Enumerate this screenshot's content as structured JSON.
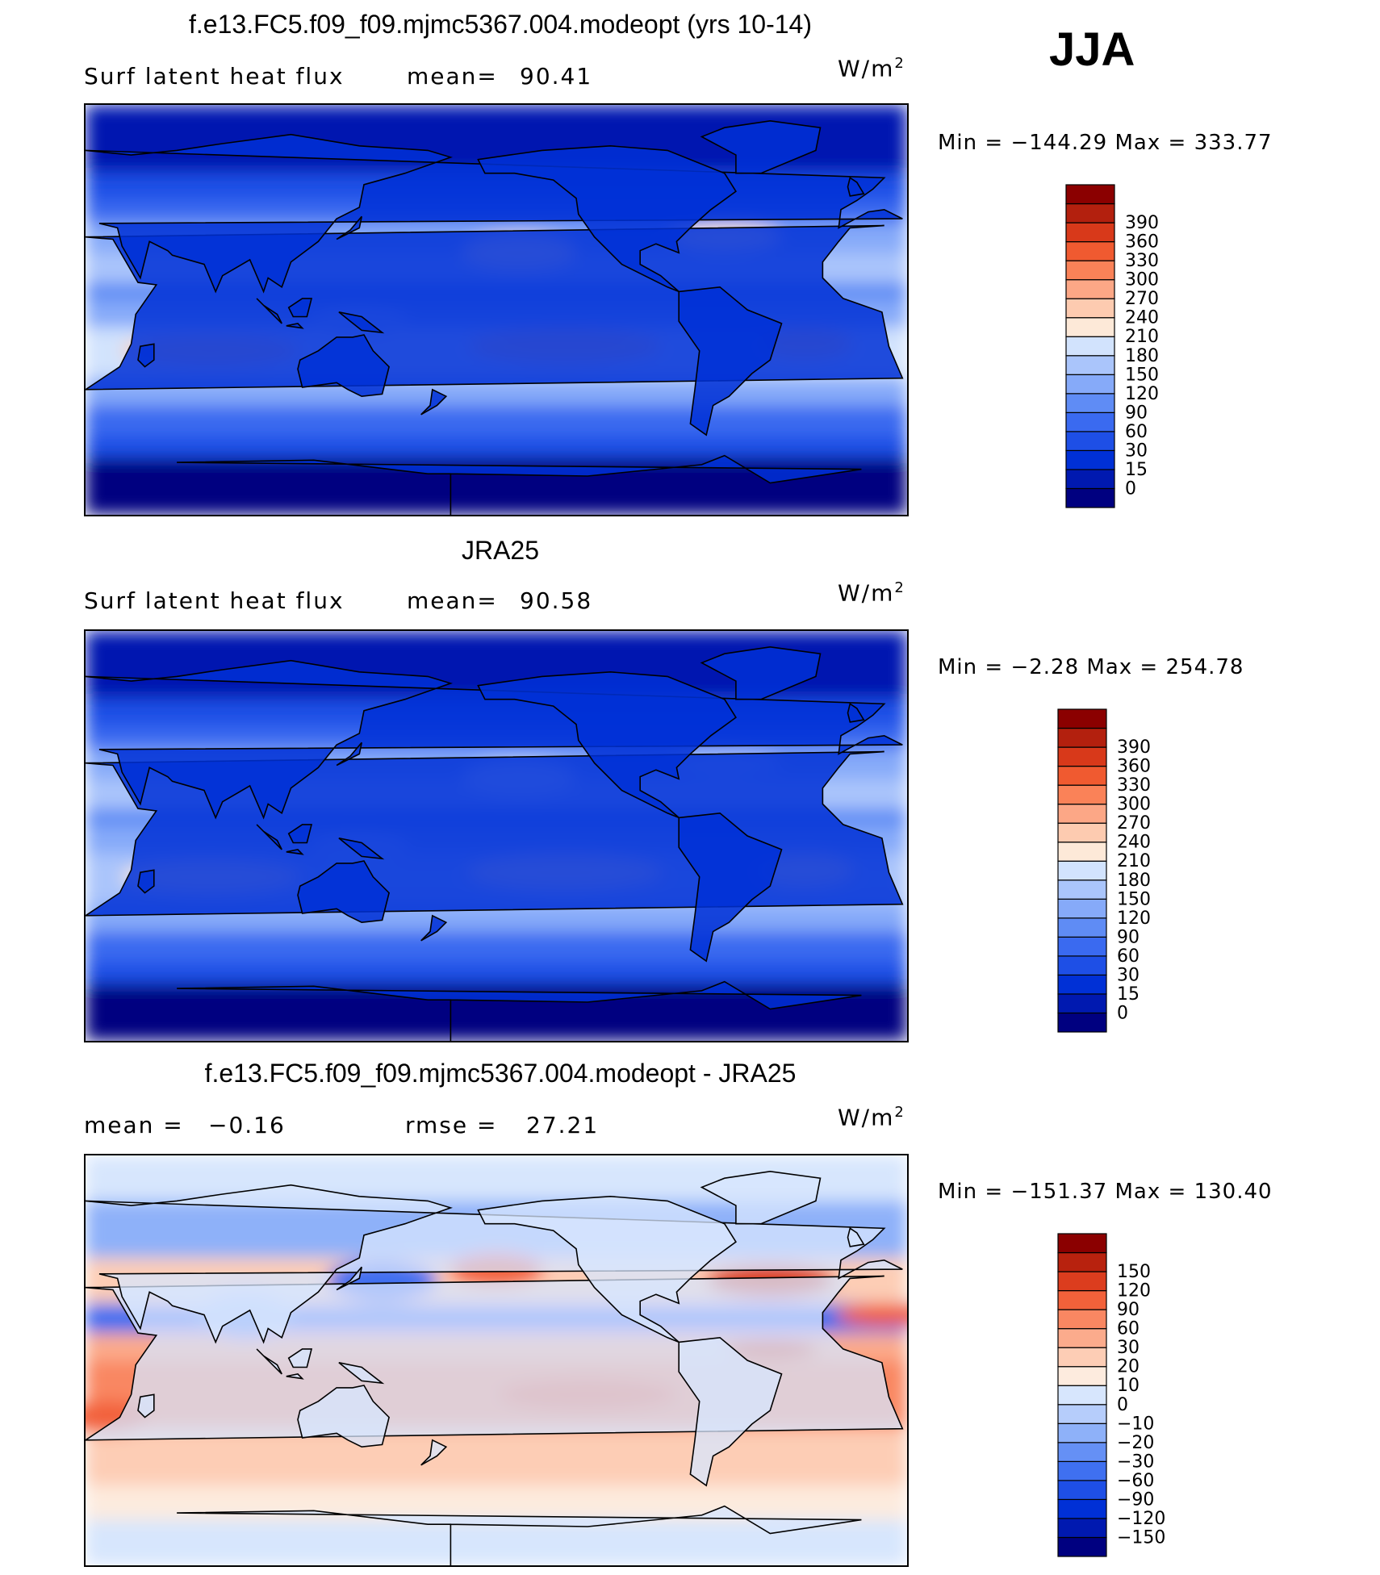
{
  "season": "JJA",
  "colors": {
    "mean_scale": [
      "#000080",
      "#0019b0",
      "#0030d6",
      "#1e4fe6",
      "#3a6af0",
      "#5f8cf5",
      "#86aaf9",
      "#aac5fb",
      "#d2e3fd",
      "#fde9d8",
      "#fdcbb0",
      "#fca786",
      "#fa8258",
      "#f05a30",
      "#d8391a",
      "#b3200e",
      "#8b0000"
    ],
    "diff_scale": [
      "#000080",
      "#0019b0",
      "#0030d6",
      "#1e4fe6",
      "#3f70f0",
      "#6590f5",
      "#8eb1f9",
      "#b6cdfb",
      "#d7e6fd",
      "#fdebde",
      "#fdcdb5",
      "#fbab8c",
      "#f98762",
      "#f2613a",
      "#dc3d1e",
      "#b8220e",
      "#8b0000"
    ],
    "land_line": "#000000"
  },
  "panels": [
    {
      "title": "f.e13.FC5.f09_f09.mjmc5367.004.modeopt (yrs 10-14)",
      "left_label": "Surf  latent  heat  flux",
      "stat_label": "mean=",
      "stat_value": "90.41",
      "units": "W/m",
      "units_sup": "2",
      "min_label": "Min  =",
      "min_value": "−144.29",
      "max_label": "Max  =",
      "max_value": "333.77"
    },
    {
      "title": "JRA25",
      "left_label": "Surf  latent  heat  flux",
      "stat_label": "mean=",
      "stat_value": "90.58",
      "units": "W/m",
      "units_sup": "2",
      "min_label": "Min  =",
      "min_value": "−2.28",
      "max_label": "Max  =",
      "max_value": "254.78"
    },
    {
      "title": "f.e13.FC5.f09_f09.mjmc5367.004.modeopt - JRA25",
      "left_label": "mean  =",
      "left_value": "−0.16",
      "stat_label": "rmse  =",
      "stat_value": "27.21",
      "units": "W/m",
      "units_sup": "2",
      "min_label": "Min  =",
      "min_value": "−151.37",
      "max_label": "Max  =",
      "max_value": "130.40"
    }
  ],
  "chart_data": [
    {
      "type": "heatmap",
      "title": "f.e13.FC5.f09_f09.mjmc5367.004.modeopt (yrs 10-14)",
      "subtitle": "Surf latent heat flux",
      "mean": 90.41,
      "min": -144.29,
      "max": 333.77,
      "units": "W/m2",
      "colorbar_levels": [
        0,
        15,
        30,
        60,
        90,
        120,
        150,
        180,
        210,
        240,
        270,
        300,
        330,
        360,
        390
      ],
      "colorbar_labels": [
        "0",
        "15",
        "30",
        "60",
        "90",
        "120",
        "150",
        "180",
        "210",
        "240",
        "270",
        "300",
        "330",
        "360",
        "390"
      ]
    },
    {
      "type": "heatmap",
      "title": "JRA25",
      "subtitle": "Surf latent heat flux",
      "mean": 90.58,
      "min": -2.28,
      "max": 254.78,
      "units": "W/m2",
      "colorbar_levels": [
        0,
        15,
        30,
        60,
        90,
        120,
        150,
        180,
        210,
        240,
        270,
        300,
        330,
        360,
        390
      ],
      "colorbar_labels": [
        "0",
        "15",
        "30",
        "60",
        "90",
        "120",
        "150",
        "180",
        "210",
        "240",
        "270",
        "300",
        "330",
        "360",
        "390"
      ]
    },
    {
      "type": "heatmap",
      "title": "f.e13.FC5.f09_f09.mjmc5367.004.modeopt - JRA25",
      "mean": -0.16,
      "rmse": 27.21,
      "min": -151.37,
      "max": 130.4,
      "units": "W/m2",
      "colorbar_levels": [
        -150,
        -120,
        -90,
        -60,
        -30,
        -20,
        -10,
        0,
        10,
        20,
        30,
        60,
        90,
        120,
        150
      ],
      "colorbar_labels": [
        "−150",
        "−120",
        "−90",
        "−60",
        "−30",
        "−20",
        "−10",
        "0",
        "10",
        "20",
        "30",
        "60",
        "90",
        "120",
        "150"
      ]
    }
  ]
}
